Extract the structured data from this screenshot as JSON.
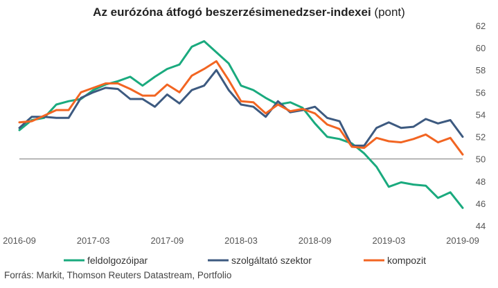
{
  "chart_data": {
    "type": "line",
    "title": "Az eurózóna átfogó beszerzésimenedzser-indexei",
    "title_unit": "(pont)",
    "x_tick_labels": [
      "2016-09",
      "2017-03",
      "2017-09",
      "2018-03",
      "2018-09",
      "2019-03",
      "2019-09"
    ],
    "y_ticks": [
      44,
      46,
      48,
      50,
      52,
      54,
      56,
      58,
      60,
      62
    ],
    "ylim": [
      44,
      62
    ],
    "y_axis_side": "right",
    "reference_line": 50,
    "grid": false,
    "legend_position": "bottom",
    "x": [
      "2016-09",
      "2016-10",
      "2016-11",
      "2016-12",
      "2017-01",
      "2017-02",
      "2017-03",
      "2017-04",
      "2017-05",
      "2017-06",
      "2017-07",
      "2017-08",
      "2017-09",
      "2017-10",
      "2017-11",
      "2017-12",
      "2018-01",
      "2018-02",
      "2018-03",
      "2018-04",
      "2018-05",
      "2018-06",
      "2018-07",
      "2018-08",
      "2018-09",
      "2018-10",
      "2018-11",
      "2018-12",
      "2019-01",
      "2019-02",
      "2019-03",
      "2019-04",
      "2019-05",
      "2019-06",
      "2019-07",
      "2019-08",
      "2019-09"
    ],
    "series": [
      {
        "name": "feldolgozóipar",
        "color": "#1aaa7e",
        "values": [
          52.6,
          53.5,
          53.7,
          54.9,
          55.2,
          55.4,
          56.2,
          56.7,
          57.0,
          57.4,
          56.6,
          57.4,
          58.1,
          58.5,
          60.1,
          60.6,
          59.6,
          58.6,
          56.6,
          56.2,
          55.5,
          54.9,
          55.1,
          54.6,
          53.2,
          52.0,
          51.8,
          51.4,
          50.5,
          49.3,
          47.5,
          47.9,
          47.7,
          47.6,
          46.5,
          47.0,
          45.6
        ]
      },
      {
        "name": "szolgáltató szektor",
        "color": "#3d5a80",
        "values": [
          52.8,
          53.8,
          53.8,
          53.7,
          53.7,
          55.5,
          56.0,
          56.4,
          56.3,
          55.4,
          55.4,
          54.7,
          55.8,
          55.0,
          56.2,
          56.6,
          58.0,
          56.2,
          54.9,
          54.7,
          53.8,
          55.2,
          54.2,
          54.4,
          54.7,
          53.7,
          53.4,
          51.2,
          51.2,
          52.8,
          53.3,
          52.8,
          52.9,
          53.6,
          53.2,
          53.5,
          52.0
        ]
      },
      {
        "name": "kompozit",
        "color": "#f26522",
        "values": [
          53.3,
          53.4,
          53.9,
          54.4,
          54.4,
          56.0,
          56.4,
          56.8,
          56.8,
          56.3,
          55.7,
          55.7,
          56.7,
          56.0,
          57.5,
          58.1,
          58.8,
          57.1,
          55.2,
          55.1,
          54.1,
          54.9,
          54.3,
          54.5,
          54.1,
          53.1,
          52.7,
          51.1,
          51.0,
          51.9,
          51.6,
          51.5,
          51.8,
          52.2,
          51.5,
          51.9,
          50.4
        ]
      }
    ],
    "source": "Forrás: Markit, Thomson Reuters Datastream, Portfolio"
  }
}
